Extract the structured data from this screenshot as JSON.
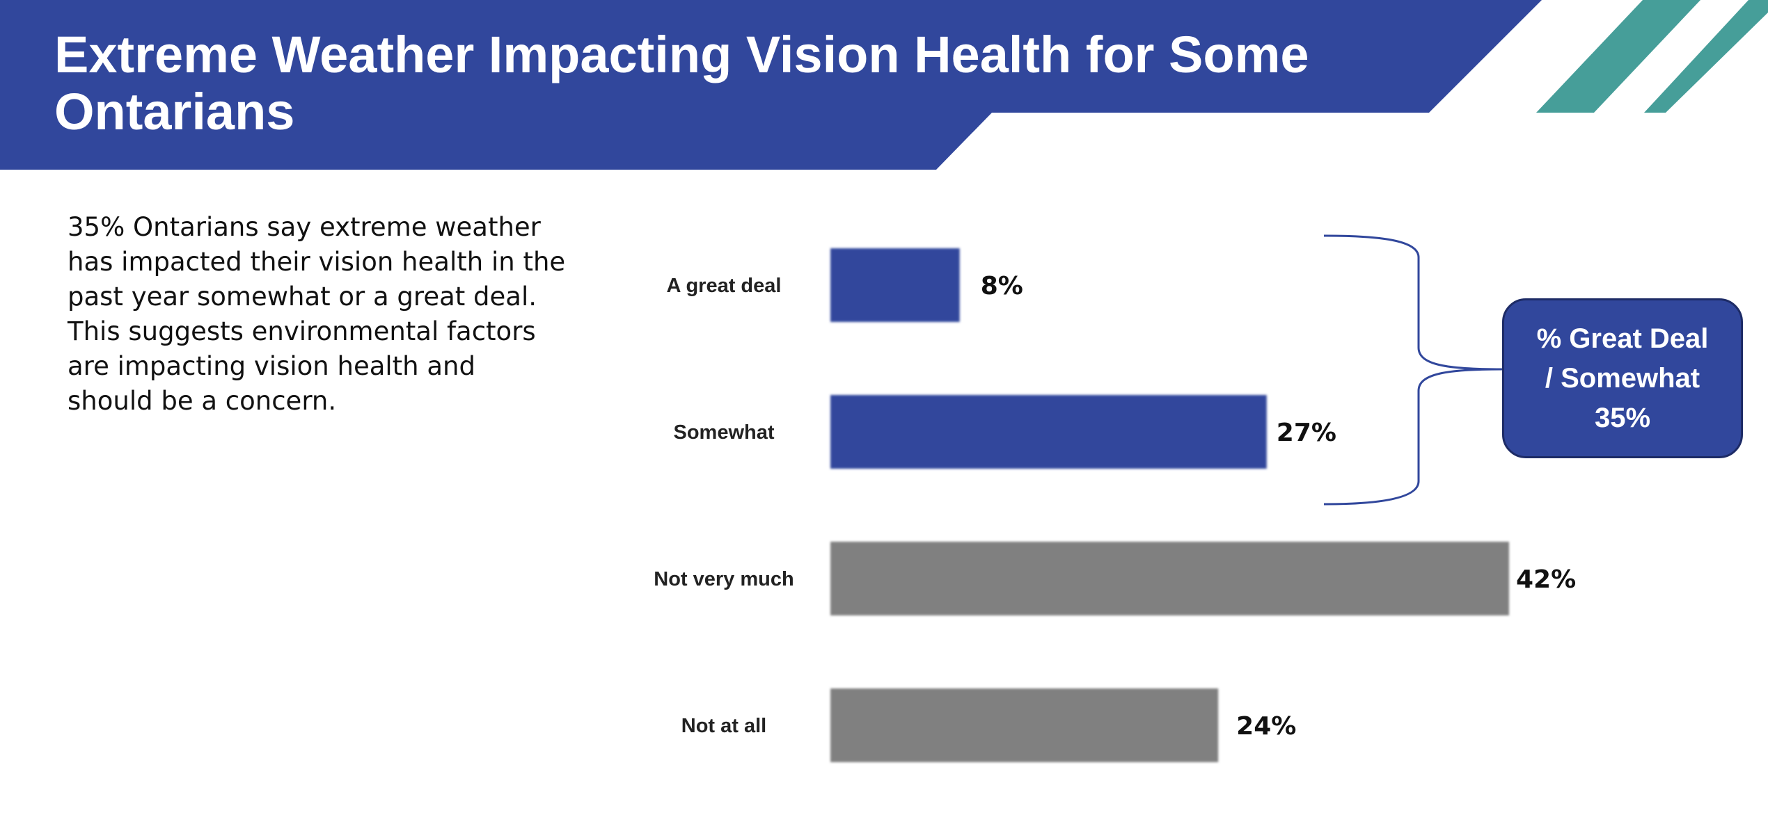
{
  "header": {
    "title": "Extreme Weather Impacting Vision Health for Some Ontarians"
  },
  "summary": {
    "text": "35% Ontarians say extreme weather has impacted their vision health in the past year somewhat or a great deal. This suggests environmental factors are impacting vision health and should be a concern."
  },
  "callout": {
    "text": "% Great Deal\n/ Somewhat\n35%"
  },
  "colors": {
    "header_blue": "#31479c",
    "accent_teal": "#469e99",
    "bar_highlight": "#31479c",
    "bar_neutral": "#808080"
  },
  "chart_data": {
    "type": "bar",
    "orientation": "horizontal",
    "title": "",
    "xlabel": "",
    "ylabel": "",
    "xlim": [
      0,
      42
    ],
    "grid": false,
    "categories": [
      "A great deal",
      "Somewhat",
      "Not very much",
      "Not at all"
    ],
    "values": [
      8,
      27,
      42,
      24
    ],
    "value_labels": [
      "8%",
      "27%",
      "42%",
      "24%"
    ],
    "bar_colors": [
      "#31479c",
      "#31479c",
      "#808080",
      "#808080"
    ]
  }
}
